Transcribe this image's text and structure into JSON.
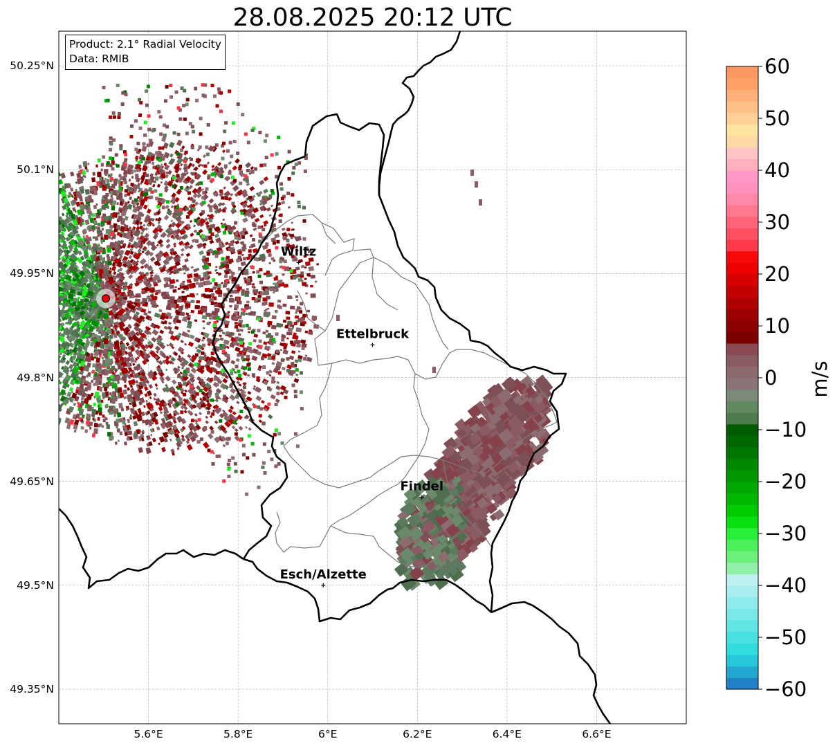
{
  "title": "28.08.2025 20:12 UTC",
  "info": {
    "product": "Product: 2.1° Radial Velocity",
    "data": "Data: RMIB"
  },
  "axes": {
    "lon_min": 5.4,
    "lon_max": 6.8,
    "lat_min": 49.3,
    "lat_max": 50.3,
    "lat_ticks": [
      {
        "value": 50.25,
        "label": "50.25°N"
      },
      {
        "value": 50.1,
        "label": "50.1°N"
      },
      {
        "value": 49.95,
        "label": "49.95°N"
      },
      {
        "value": 49.8,
        "label": "49.8°N"
      },
      {
        "value": 49.65,
        "label": "49.65°N"
      },
      {
        "value": 49.5,
        "label": "49.5°N"
      },
      {
        "value": 49.35,
        "label": "49.35°N"
      }
    ],
    "lon_ticks": [
      {
        "value": 5.6,
        "label": "5.6°E"
      },
      {
        "value": 5.8,
        "label": "5.8°E"
      },
      {
        "value": 6.0,
        "label": "6°E"
      },
      {
        "value": 6.2,
        "label": "6.2°E"
      },
      {
        "value": 6.4,
        "label": "6.4°E"
      },
      {
        "value": 6.6,
        "label": "6.6°E"
      }
    ],
    "grid": true
  },
  "radar_site": {
    "lon": 5.505,
    "lat": 49.914,
    "color": "#e00000"
  },
  "cities": [
    {
      "name": "Wiltz",
      "lon": 5.935,
      "lat": 49.966
    },
    {
      "name": "Ettelbruck",
      "lon": 6.1,
      "lat": 49.847
    },
    {
      "name": "Findel",
      "lon": 6.21,
      "lat": 49.627
    },
    {
      "name": "Esch/Alzette",
      "lon": 5.99,
      "lat": 49.5
    }
  ],
  "colorbar": {
    "label": "m/s",
    "min": -60,
    "max": 60,
    "ticks": [
      {
        "value": 60,
        "label": "60"
      },
      {
        "value": 50,
        "label": "50"
      },
      {
        "value": 40,
        "label": "40"
      },
      {
        "value": 30,
        "label": "30"
      },
      {
        "value": 20,
        "label": "20"
      },
      {
        "value": 10,
        "label": "10"
      },
      {
        "value": 0,
        "label": "0"
      },
      {
        "value": -10,
        "label": "−10"
      },
      {
        "value": -20,
        "label": "−20"
      },
      {
        "value": -30,
        "label": "−30"
      },
      {
        "value": -40,
        "label": "−40"
      },
      {
        "value": -50,
        "label": "−50"
      },
      {
        "value": -60,
        "label": "−60"
      }
    ],
    "colors": [
      "#2180c8",
      "#22a8d0",
      "#28c8dc",
      "#30dcdc",
      "#48e0e0",
      "#60e4e4",
      "#78e8e8",
      "#90ecec",
      "#a8eeee",
      "#bdf0f0",
      "#90f0a8",
      "#6cf07c",
      "#4cf05c",
      "#28f038",
      "#08e010",
      "#00cc00",
      "#00b800",
      "#00a800",
      "#009600",
      "#008800",
      "#007800",
      "#006800",
      "#005c00",
      "#4e7c4e",
      "#628a62",
      "#7a8b78",
      "#8a7478",
      "#8c6a6e",
      "#8a5c62",
      "#8a4a52",
      "#7c0000",
      "#8c0000",
      "#9c0000",
      "#b00000",
      "#c40000",
      "#d80000",
      "#ec0000",
      "#f80808",
      "#ff3a4a",
      "#ff5062",
      "#ff6478",
      "#ff7890",
      "#ff88a8",
      "#ff90c0",
      "#ff98c8",
      "#ffb0bc",
      "#ffc4c4",
      "#ffd8a8",
      "#ffe4a0",
      "#ffd098",
      "#ffc088",
      "#ffb078",
      "#ffa068",
      "#ff9860"
    ]
  },
  "velocity_palette": {
    "positive": [
      "#8b5a62",
      "#7d5055",
      "#8c6c70",
      "#86424a",
      "#7a0000",
      "#990000",
      "#b00000",
      "#ff3344"
    ],
    "negative": [
      "#5e7a5e",
      "#6b8a6b",
      "#4f6e4f",
      "#007000",
      "#008c00",
      "#00b800",
      "#22ee22"
    ]
  },
  "boundary_colors": {
    "country": "#000000",
    "canton": "#7a7a7a"
  }
}
